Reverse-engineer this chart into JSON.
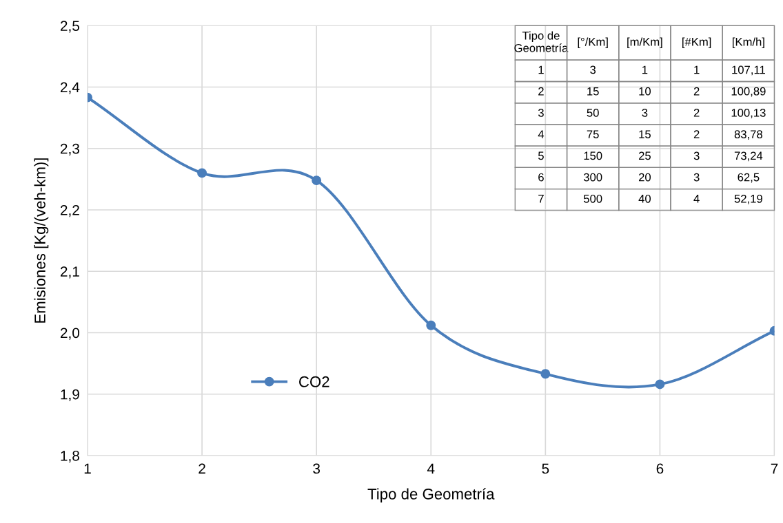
{
  "chart_data": {
    "type": "line",
    "xlabel": "Tipo de Geometría",
    "ylabel": "Emisiones [Kg/(veh-km)]",
    "x": [
      1,
      2,
      3,
      4,
      5,
      6,
      7
    ],
    "series": [
      {
        "name": "CO2",
        "color": "#4a7ebb",
        "values": [
          2.383,
          2.26,
          2.248,
          2.012,
          1.933,
          1.916,
          2.003
        ]
      }
    ],
    "xlim": [
      1,
      7
    ],
    "xticks": [
      1,
      2,
      3,
      4,
      5,
      6,
      7
    ],
    "ylim": [
      1.8,
      2.5
    ],
    "yticks": [
      {
        "value": 1.8,
        "label": "1,8"
      },
      {
        "value": 1.9,
        "label": "1,9"
      },
      {
        "value": 2.0,
        "label": "2,0"
      },
      {
        "value": 2.1,
        "label": "2,1"
      },
      {
        "value": 2.2,
        "label": "2,2"
      },
      {
        "value": 2.3,
        "label": "2,3"
      },
      {
        "value": 2.4,
        "label": "2,4"
      },
      {
        "value": 2.5,
        "label": "2,5"
      }
    ],
    "grid": true,
    "legend": "bottom left",
    "marker": "circle",
    "line_style": "solid",
    "annotations": [
      "Tipo de\nGeometría",
      "[°/Km]",
      "[m/Km]",
      "[#Km]",
      "[Km/h]",
      "1",
      "3",
      "1",
      "1",
      "107,11",
      "2",
      "15",
      "10",
      "2",
      "100,89",
      "3",
      "50",
      "3",
      "2",
      "100,13",
      "4",
      "75",
      "15",
      "2",
      "83,78",
      "5",
      "150",
      "25",
      "3",
      "73,24",
      "6",
      "300",
      "20",
      "3",
      "62,5",
      "7",
      "500",
      "40",
      "4",
      "52,19"
    ]
  }
}
